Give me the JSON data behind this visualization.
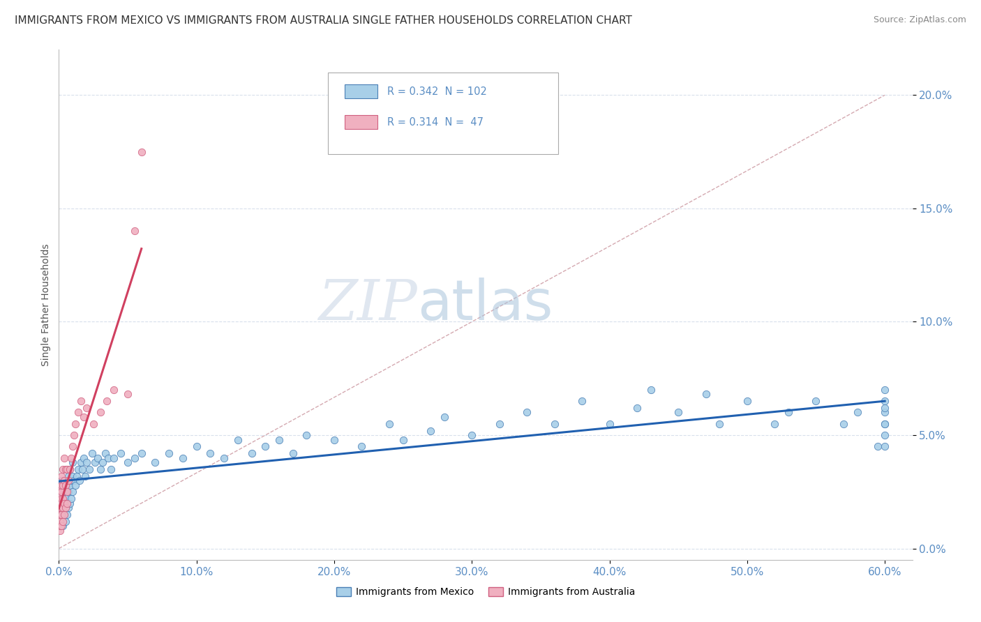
{
  "title": "IMMIGRANTS FROM MEXICO VS IMMIGRANTS FROM AUSTRALIA SINGLE FATHER HOUSEHOLDS CORRELATION CHART",
  "source": "Source: ZipAtlas.com",
  "ylabel": "Single Father Households",
  "xlim": [
    0.0,
    0.62
  ],
  "ylim": [
    -0.005,
    0.22
  ],
  "ytick_positions": [
    0.0,
    0.05,
    0.1,
    0.15,
    0.2
  ],
  "ytick_labels": [
    "0.0%",
    "5.0%",
    "10.0%",
    "15.0%",
    "20.0%"
  ],
  "xtick_positions": [
    0.0,
    0.1,
    0.2,
    0.3,
    0.4,
    0.5,
    0.6
  ],
  "xtick_labels": [
    "0.0%",
    "10.0%",
    "20.0%",
    "30.0%",
    "40.0%",
    "50.0%",
    "60.0%"
  ],
  "blue_color": "#a8cfe8",
  "pink_color": "#f0b0c0",
  "blue_edge_color": "#4a7fb5",
  "pink_edge_color": "#d06080",
  "blue_line_color": "#2060b0",
  "pink_line_color": "#d04060",
  "ref_line_color": "#d0a0a8",
  "grid_color": "#d8e0ec",
  "axis_tick_color": "#5b8ec4",
  "mexico_x": [
    0.001,
    0.001,
    0.001,
    0.002,
    0.002,
    0.002,
    0.002,
    0.003,
    0.003,
    0.003,
    0.003,
    0.003,
    0.004,
    0.004,
    0.004,
    0.004,
    0.005,
    0.005,
    0.005,
    0.005,
    0.006,
    0.006,
    0.006,
    0.007,
    0.007,
    0.007,
    0.008,
    0.008,
    0.008,
    0.009,
    0.009,
    0.01,
    0.01,
    0.01,
    0.011,
    0.012,
    0.013,
    0.014,
    0.015,
    0.016,
    0.017,
    0.018,
    0.019,
    0.02,
    0.022,
    0.024,
    0.026,
    0.028,
    0.03,
    0.032,
    0.034,
    0.036,
    0.038,
    0.04,
    0.045,
    0.05,
    0.055,
    0.06,
    0.07,
    0.08,
    0.09,
    0.1,
    0.11,
    0.12,
    0.13,
    0.14,
    0.15,
    0.16,
    0.17,
    0.18,
    0.2,
    0.22,
    0.24,
    0.25,
    0.27,
    0.28,
    0.3,
    0.32,
    0.34,
    0.36,
    0.38,
    0.4,
    0.42,
    0.43,
    0.45,
    0.47,
    0.48,
    0.5,
    0.52,
    0.53,
    0.55,
    0.57,
    0.58,
    0.595,
    0.6,
    0.6,
    0.6,
    0.6,
    0.6,
    0.6,
    0.6,
    0.6
  ],
  "mexico_y": [
    0.018,
    0.025,
    0.01,
    0.015,
    0.02,
    0.025,
    0.03,
    0.01,
    0.015,
    0.02,
    0.025,
    0.028,
    0.015,
    0.02,
    0.025,
    0.03,
    0.012,
    0.018,
    0.022,
    0.028,
    0.015,
    0.02,
    0.028,
    0.018,
    0.025,
    0.032,
    0.02,
    0.028,
    0.035,
    0.022,
    0.03,
    0.025,
    0.032,
    0.038,
    0.03,
    0.028,
    0.032,
    0.035,
    0.03,
    0.038,
    0.035,
    0.04,
    0.032,
    0.038,
    0.035,
    0.042,
    0.038,
    0.04,
    0.035,
    0.038,
    0.042,
    0.04,
    0.035,
    0.04,
    0.042,
    0.038,
    0.04,
    0.042,
    0.038,
    0.042,
    0.04,
    0.045,
    0.042,
    0.04,
    0.048,
    0.042,
    0.045,
    0.048,
    0.042,
    0.05,
    0.048,
    0.045,
    0.055,
    0.048,
    0.052,
    0.058,
    0.05,
    0.055,
    0.06,
    0.055,
    0.065,
    0.055,
    0.062,
    0.07,
    0.06,
    0.068,
    0.055,
    0.065,
    0.055,
    0.06,
    0.065,
    0.055,
    0.06,
    0.045,
    0.05,
    0.06,
    0.045,
    0.055,
    0.065,
    0.07,
    0.055,
    0.062
  ],
  "australia_x": [
    0.001,
    0.001,
    0.001,
    0.001,
    0.001,
    0.001,
    0.001,
    0.001,
    0.002,
    0.002,
    0.002,
    0.002,
    0.002,
    0.002,
    0.002,
    0.003,
    0.003,
    0.003,
    0.003,
    0.003,
    0.004,
    0.004,
    0.004,
    0.004,
    0.005,
    0.005,
    0.005,
    0.006,
    0.006,
    0.006,
    0.007,
    0.008,
    0.009,
    0.01,
    0.011,
    0.012,
    0.014,
    0.016,
    0.018,
    0.02,
    0.025,
    0.03,
    0.035,
    0.04,
    0.05,
    0.055,
    0.06
  ],
  "australia_y": [
    0.008,
    0.01,
    0.012,
    0.015,
    0.018,
    0.02,
    0.023,
    0.026,
    0.01,
    0.015,
    0.018,
    0.022,
    0.025,
    0.028,
    0.032,
    0.012,
    0.018,
    0.022,
    0.028,
    0.035,
    0.015,
    0.02,
    0.03,
    0.04,
    0.018,
    0.028,
    0.035,
    0.02,
    0.025,
    0.035,
    0.03,
    0.035,
    0.04,
    0.045,
    0.05,
    0.055,
    0.06,
    0.065,
    0.058,
    0.062,
    0.055,
    0.06,
    0.065,
    0.07,
    0.068,
    0.14,
    0.175
  ],
  "blue_label_1": "R = 0.342",
  "blue_label_2": "N = 102",
  "pink_label_1": "R = 0.314",
  "pink_label_2": "N =  47",
  "bottom_label_blue": "Immigrants from Mexico",
  "bottom_label_pink": "Immigrants from Australia"
}
